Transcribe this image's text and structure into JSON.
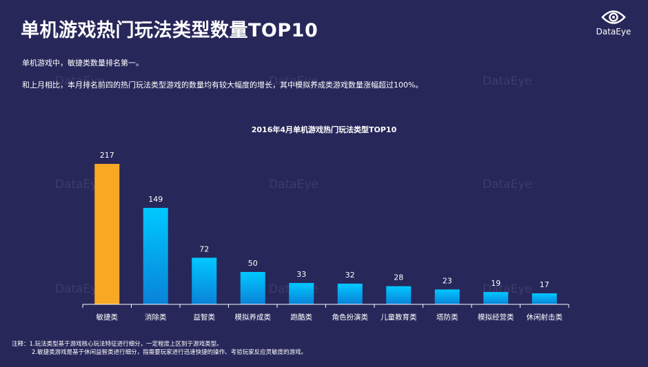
{
  "header": {
    "title": "单机游戏热门玩法类型数量TOP10",
    "logo_text": "DataEye",
    "logo_icon": "eye-logo-icon"
  },
  "description": {
    "line1": "单机游戏中，敏捷类数量排名第一。",
    "line2": "和上月相比，本月排名前四的热门玩法类型游戏的数量均有较大幅度的增长，其中模拟养成类游戏数量涨幅超过100%。"
  },
  "watermark": "DataEye",
  "chart_data": {
    "type": "bar",
    "title": "2016年4月单机游戏热门玩法类型TOP10",
    "categories": [
      "敏捷类",
      "消除类",
      "益智类",
      "模拟养成类",
      "跑酷类",
      "角色扮演类",
      "儿童教育类",
      "塔防类",
      "模拟经营类",
      "休闲射击类"
    ],
    "values": [
      217,
      149,
      72,
      50,
      33,
      32,
      28,
      23,
      19,
      17
    ],
    "highlight_index": 0,
    "ylim": [
      0,
      230
    ],
    "colors": {
      "highlight": "#f9a825",
      "bar_top": "#00c8ff",
      "bar_bottom": "#0a82d8",
      "axis": "#ffffff"
    }
  },
  "notes": {
    "line1": "注释：1.玩法类型基于游戏核心玩法特征进行细分，一定程度上区别于游戏类型。",
    "line2": "2.敏捷类游戏是基于休闲益智类进行细分，指需要玩家进行迅速快捷的操作、考验玩家反应灵敏度的游戏。"
  }
}
